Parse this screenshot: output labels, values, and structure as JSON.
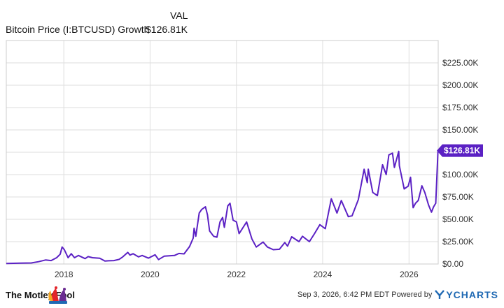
{
  "chart_data": {
    "type": "line",
    "title": "Bitcoin Price (I:BTCUSD) Growth",
    "value_header": "VAL",
    "current_value_label": "$126.81K",
    "series": [
      {
        "name": "Bitcoin Price (I:BTCUSD) Growth",
        "color": "#5b21c4",
        "points": [
          [
            "2016-09-01",
            0.6
          ],
          [
            "2017-01-01",
            1.0
          ],
          [
            "2017-04-01",
            1.2
          ],
          [
            "2017-06-01",
            2.6
          ],
          [
            "2017-08-01",
            4.5
          ],
          [
            "2017-09-15",
            3.8
          ],
          [
            "2017-11-01",
            7.0
          ],
          [
            "2017-12-01",
            11.0
          ],
          [
            "2017-12-17",
            19.0
          ],
          [
            "2018-01-05",
            16.0
          ],
          [
            "2018-02-06",
            7.0
          ],
          [
            "2018-03-05",
            11.5
          ],
          [
            "2018-04-01",
            7.0
          ],
          [
            "2018-05-05",
            9.5
          ],
          [
            "2018-06-30",
            6.0
          ],
          [
            "2018-07-25",
            8.3
          ],
          [
            "2018-09-01",
            7.0
          ],
          [
            "2018-11-01",
            6.4
          ],
          [
            "2018-12-15",
            3.3
          ],
          [
            "2019-01-15",
            3.6
          ],
          [
            "2019-03-01",
            3.8
          ],
          [
            "2019-04-15",
            5.2
          ],
          [
            "2019-05-15",
            8.0
          ],
          [
            "2019-06-26",
            13.0
          ],
          [
            "2019-07-15",
            10.0
          ],
          [
            "2019-08-10",
            11.5
          ],
          [
            "2019-09-25",
            8.0
          ],
          [
            "2019-10-26",
            9.5
          ],
          [
            "2019-12-18",
            6.6
          ],
          [
            "2020-02-13",
            10.3
          ],
          [
            "2020-03-13",
            4.9
          ],
          [
            "2020-05-01",
            8.8
          ],
          [
            "2020-07-25",
            9.5
          ],
          [
            "2020-09-01",
            11.8
          ],
          [
            "2020-10-15",
            11.3
          ],
          [
            "2020-11-30",
            19.5
          ],
          [
            "2020-12-31",
            29.0
          ],
          [
            "2021-01-08",
            40.0
          ],
          [
            "2021-01-22",
            31.0
          ],
          [
            "2021-02-20",
            57.0
          ],
          [
            "2021-03-13",
            61.0
          ],
          [
            "2021-04-14",
            64.0
          ],
          [
            "2021-05-01",
            55.0
          ],
          [
            "2021-05-19",
            37.0
          ],
          [
            "2021-06-22",
            31.0
          ],
          [
            "2021-07-20",
            30.0
          ],
          [
            "2021-08-15",
            47.0
          ],
          [
            "2021-09-06",
            52.0
          ],
          [
            "2021-09-21",
            41.0
          ],
          [
            "2021-10-20",
            65.0
          ],
          [
            "2021-11-08",
            68.0
          ],
          [
            "2021-12-04",
            49.0
          ],
          [
            "2022-01-01",
            47.0
          ],
          [
            "2022-01-24",
            34.0
          ],
          [
            "2022-03-28",
            47.0
          ],
          [
            "2022-05-12",
            28.0
          ],
          [
            "2022-06-18",
            19.0
          ],
          [
            "2022-08-15",
            24.5
          ],
          [
            "2022-09-20",
            19.0
          ],
          [
            "2022-11-09",
            16.0
          ],
          [
            "2022-12-31",
            16.5
          ],
          [
            "2023-02-15",
            24.0
          ],
          [
            "2023-03-10",
            20.0
          ],
          [
            "2023-04-14",
            30.5
          ],
          [
            "2023-06-15",
            25.0
          ],
          [
            "2023-07-14",
            31.0
          ],
          [
            "2023-09-11",
            25.0
          ],
          [
            "2023-10-24",
            34.0
          ],
          [
            "2023-12-08",
            44.0
          ],
          [
            "2024-01-23",
            39.5
          ],
          [
            "2024-03-14",
            73.0
          ],
          [
            "2024-05-01",
            57.0
          ],
          [
            "2024-06-07",
            71.0
          ],
          [
            "2024-08-05",
            53.0
          ],
          [
            "2024-09-06",
            54.0
          ],
          [
            "2024-10-29",
            72.0
          ],
          [
            "2024-12-17",
            106.0
          ],
          [
            "2025-01-13",
            91.0
          ],
          [
            "2025-01-21",
            106.0
          ],
          [
            "2025-02-28",
            80.0
          ],
          [
            "2025-04-08",
            76.5
          ],
          [
            "2025-05-22",
            111.0
          ],
          [
            "2025-06-22",
            100.0
          ],
          [
            "2025-07-14",
            122.0
          ],
          [
            "2025-08-14",
            124.0
          ],
          [
            "2025-08-30",
            108.0
          ],
          [
            "2025-10-06",
            126.0
          ],
          [
            "2025-10-11",
            110.0
          ],
          [
            "2025-11-21",
            84.0
          ],
          [
            "2025-12-25",
            87.0
          ],
          [
            "2026-01-14",
            97.0
          ],
          [
            "2026-02-05",
            63.0
          ],
          [
            "2026-02-25",
            68.0
          ],
          [
            "2026-03-20",
            71.0
          ],
          [
            "2026-04-20",
            87.5
          ],
          [
            "2026-05-15",
            80.0
          ],
          [
            "2026-06-15",
            66.0
          ],
          [
            "2026-07-10",
            58.0
          ],
          [
            "2026-07-28",
            64.0
          ],
          [
            "2026-08-15",
            68.0
          ],
          [
            "2026-09-03",
            126.81
          ]
        ]
      }
    ],
    "x_ticks": [
      "2018",
      "2020",
      "2022",
      "2024",
      "2026"
    ],
    "y_ticks": [
      "$0.00",
      "$25.00K",
      "$50.00K",
      "$75.00K",
      "$100.00K",
      "$125.00K",
      "$150.00K",
      "$175.00K",
      "$200.00K",
      "$225.00K"
    ],
    "xlim": [
      "2016-09-01",
      "2026-09-05"
    ],
    "ylim": [
      0,
      250
    ],
    "grid": true,
    "xlabel": "",
    "ylabel": ""
  },
  "footer": {
    "brand": "The Motley Fool",
    "timestamp": "Sep 3, 2026, 6:42 PM EDT  Powered by",
    "source_logo": "YCHARTS"
  },
  "colors": {
    "line": "#5b21c4",
    "grid": "#dedede",
    "border": "#cccccc",
    "label_flag": "#5b21c4",
    "fool_red": "#e3252b",
    "fool_purple": "#6a2c91",
    "ycharts_blue": "#1f69b3"
  }
}
